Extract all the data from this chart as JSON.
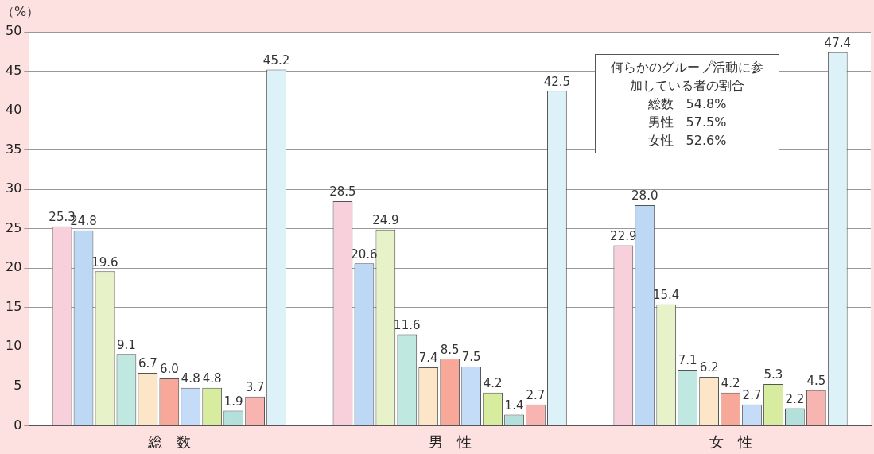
{
  "chart_data": {
    "type": "bar",
    "ylabel": "（%）",
    "categories": [
      "総　数",
      "男　性",
      "女　性"
    ],
    "series": [
      {
        "color": "#f8d0dc",
        "values": [
          25.3,
          28.5,
          22.9
        ],
        "value_labels": [
          "25.3",
          "28.5",
          "22.9"
        ]
      },
      {
        "color": "#bcd8f4",
        "values": [
          24.8,
          20.6,
          28.0
        ],
        "value_labels": [
          "24.8",
          "20.6",
          "28.0"
        ]
      },
      {
        "color": "#e8f2c8",
        "values": [
          19.6,
          24.9,
          15.4
        ],
        "value_labels": [
          "19.6",
          "24.9",
          "15.4"
        ]
      },
      {
        "color": "#bfe8e0",
        "values": [
          9.1,
          11.6,
          7.1
        ],
        "value_labels": [
          "9.1",
          "11.6",
          "7.1"
        ]
      },
      {
        "color": "#fde6c8",
        "values": [
          6.7,
          7.4,
          6.2
        ],
        "value_labels": [
          "6.7",
          "7.4",
          "6.2"
        ]
      },
      {
        "color": "#f8a898",
        "values": [
          6.0,
          8.5,
          4.2
        ],
        "value_labels": [
          "6.0",
          "8.5",
          "4.2"
        ]
      },
      {
        "color": "#c4dcf8",
        "values": [
          4.8,
          7.5,
          2.7
        ],
        "value_labels": [
          "4.8",
          "7.5",
          "2.7"
        ]
      },
      {
        "color": "#d8eca0",
        "values": [
          4.8,
          4.2,
          5.3
        ],
        "value_labels": [
          "4.8",
          "4.2",
          "5.3"
        ]
      },
      {
        "color": "#b4e0dc",
        "values": [
          1.9,
          1.4,
          2.2
        ],
        "value_labels": [
          "1.9",
          "1.4",
          "2.2"
        ]
      },
      {
        "color": "#f8b4b0",
        "values": [
          3.7,
          2.7,
          4.5
        ],
        "value_labels": [
          "3.7",
          "2.7",
          "4.5"
        ]
      },
      {
        "color": "#dcf2f8",
        "values": [
          45.2,
          42.5,
          47.4
        ],
        "value_labels": [
          "45.2",
          "42.5",
          "47.4"
        ]
      }
    ],
    "ylim": [
      0,
      50
    ],
    "yticks": [
      0,
      5,
      10,
      15,
      20,
      25,
      30,
      35,
      40,
      45,
      50
    ],
    "grid": "y",
    "legend": false,
    "annotations": [
      "何らかのグループ活動に参加している者の割合",
      "総数　54.8%",
      "男性　57.5%",
      "女性　52.6%"
    ]
  }
}
